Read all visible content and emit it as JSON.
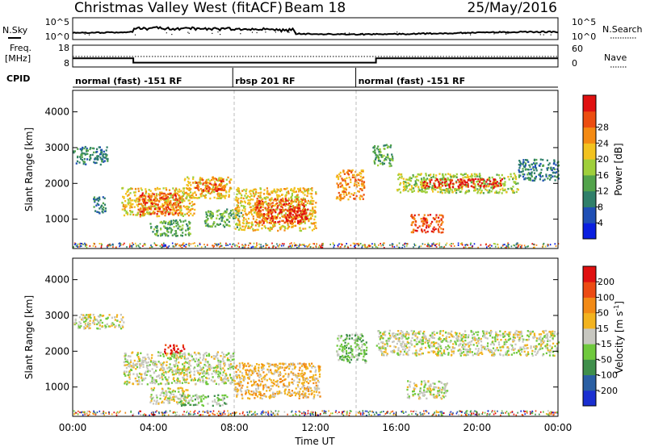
{
  "header": {
    "station": "Christmas Valley West (fitACF)",
    "beam": "Beam 18",
    "date": "25/May/2016"
  },
  "side_labels": {
    "nsky": "N.Sky",
    "nsearch": "N.Search",
    "freq_line1": "Freq.",
    "freq_line2": "[MHz]",
    "nave": "Nave",
    "cpid": "CPID"
  },
  "small_axes": {
    "noise_left_ticks": [
      "10^5",
      "10^0"
    ],
    "noise_right_ticks": [
      "10^5",
      "10^0"
    ],
    "freq_left_ticks": [
      "18",
      "8"
    ],
    "nave_right_ticks": [
      "60",
      "0"
    ]
  },
  "cpid_segments": [
    {
      "start": "00:00",
      "end": "07:55",
      "label": "normal (fast) -151 RF"
    },
    {
      "start": "07:55",
      "end": "14:00",
      "label": "rbsp 201 RF"
    },
    {
      "start": "14:00",
      "end": "24:00",
      "label": "normal (fast) -151 RF"
    }
  ],
  "time_ticks": [
    "00:00",
    "04:00",
    "08:00",
    "12:00",
    "16:00",
    "20:00",
    "00:00"
  ],
  "xlabel": "Time UT",
  "power_panel": {
    "ylabel": "Slant Range [km]",
    "yticks": [
      "1000",
      "2000",
      "3000",
      "4000"
    ],
    "cbar_label": "Power [dB]",
    "cbar_ticks": [
      "4",
      "8",
      "12",
      "16",
      "20",
      "24",
      "28"
    ],
    "cbar_colors": [
      "#0a1fe0",
      "#1f4fb5",
      "#2f7f6a",
      "#52a34b",
      "#9fcf3b",
      "#f2c21f",
      "#f48a13",
      "#ec4d10",
      "#e01010"
    ]
  },
  "velocity_panel": {
    "ylabel": "Slant Range [km]",
    "yticks": [
      "1000",
      "2000",
      "3000",
      "4000"
    ],
    "cbar_label": "Velocity [m s",
    "cbar_label_sup": "-1",
    "cbar_label_end": "]",
    "cbar_ticks": [
      "200",
      "100",
      "50",
      "15",
      "-15",
      "-50",
      "-100",
      "-200"
    ],
    "cbar_colors": [
      "#1a2fd1",
      "#2a5fa3",
      "#3f8f4b",
      "#6fc93d",
      "#c7c7c0",
      "#f2b31f",
      "#f28a16",
      "#ec4a12",
      "#e01010"
    ]
  },
  "chart_data": {
    "type": "heatmap",
    "x_range_hours": [
      0,
      24
    ],
    "y_range_km": [
      180,
      4600
    ],
    "power_regions": [
      {
        "t0": 0.0,
        "t1": 1.7,
        "r0": 2550,
        "r1": 3050,
        "level": 2
      },
      {
        "t0": 1.0,
        "t1": 1.6,
        "r0": 1150,
        "r1": 1650,
        "level": 2
      },
      {
        "t0": 2.4,
        "t1": 6.0,
        "r0": 1100,
        "r1": 1900,
        "level": 5
      },
      {
        "t0": 3.2,
        "t1": 5.3,
        "r0": 1150,
        "r1": 1750,
        "level": 7
      },
      {
        "t0": 5.5,
        "t1": 7.8,
        "r0": 1600,
        "r1": 2200,
        "level": 5
      },
      {
        "t0": 6.0,
        "t1": 7.5,
        "r0": 1800,
        "r1": 2150,
        "level": 7
      },
      {
        "t0": 3.8,
        "t1": 5.8,
        "r0": 550,
        "r1": 1000,
        "level": 3
      },
      {
        "t0": 6.5,
        "t1": 8.3,
        "r0": 800,
        "r1": 1300,
        "level": 3
      },
      {
        "t0": 8.0,
        "t1": 12.0,
        "r0": 700,
        "r1": 1900,
        "level": 5
      },
      {
        "t0": 9.0,
        "t1": 11.5,
        "r0": 900,
        "r1": 1600,
        "level": 7
      },
      {
        "t0": 10.5,
        "t1": 11.6,
        "r0": 950,
        "r1": 1350,
        "level": 8
      },
      {
        "t0": 13.0,
        "t1": 14.4,
        "r0": 1550,
        "r1": 2400,
        "level": 6
      },
      {
        "t0": 14.8,
        "t1": 15.8,
        "r0": 2500,
        "r1": 3100,
        "level": 3
      },
      {
        "t0": 16.0,
        "t1": 22.0,
        "r0": 1750,
        "r1": 2300,
        "level": 4
      },
      {
        "t0": 17.3,
        "t1": 21.2,
        "r0": 1900,
        "r1": 2150,
        "level": 8
      },
      {
        "t0": 16.7,
        "t1": 18.3,
        "r0": 650,
        "r1": 1150,
        "level": 7
      },
      {
        "t0": 22.0,
        "t1": 24.0,
        "r0": 2100,
        "r1": 2700,
        "level": 2
      }
    ],
    "velocity_regions": [
      {
        "t0": 0.0,
        "t1": 2.5,
        "r0": 2650,
        "r1": 3050,
        "level": 4
      },
      {
        "t0": 2.5,
        "t1": 8.0,
        "r0": 1100,
        "r1": 2000,
        "level": 4
      },
      {
        "t0": 3.8,
        "t1": 5.8,
        "r0": 550,
        "r1": 1000,
        "level": 4
      },
      {
        "t0": 5.3,
        "t1": 7.6,
        "r0": 500,
        "r1": 800,
        "level": 3
      },
      {
        "t0": 4.5,
        "t1": 5.5,
        "r0": 1950,
        "r1": 2200,
        "level": 8
      },
      {
        "t0": 8.0,
        "t1": 12.2,
        "r0": 700,
        "r1": 1700,
        "level": 5
      },
      {
        "t0": 13.0,
        "t1": 14.5,
        "r0": 1700,
        "r1": 2500,
        "level": 3
      },
      {
        "t0": 15.0,
        "t1": 24.0,
        "r0": 1900,
        "r1": 2600,
        "level": 4
      },
      {
        "t0": 16.5,
        "t1": 18.5,
        "r0": 700,
        "r1": 1200,
        "level": 4
      }
    ],
    "nsky_level": "approximately 10^2 (thick black line)",
    "freq_segments_mhz": [
      {
        "start": 0.0,
        "end": 3.0,
        "value": 12
      },
      {
        "start": 3.0,
        "end": 15.0,
        "value": 10
      },
      {
        "start": 15.0,
        "end": 24.0,
        "value": 12
      }
    ]
  }
}
